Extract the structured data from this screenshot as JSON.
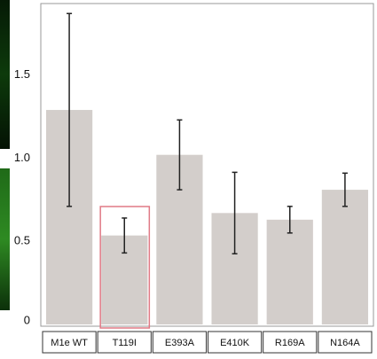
{
  "chart_data": {
    "type": "bar",
    "categories": [
      "M1e WT",
      "T119I",
      "E393A",
      "E410K",
      "R169A",
      "N164A"
    ],
    "values": [
      1.29,
      0.535,
      1.02,
      0.67,
      0.63,
      0.81
    ],
    "errors": [
      0.58,
      0.105,
      0.21,
      0.245,
      0.08,
      0.1
    ],
    "color": "#d3cecb",
    "ylim": [
      0,
      1.93
    ],
    "yticks": [
      0,
      0.5,
      {
        "value": 1,
        "label": "1.0"
      },
      1.5
    ],
    "grid": false
  }
}
